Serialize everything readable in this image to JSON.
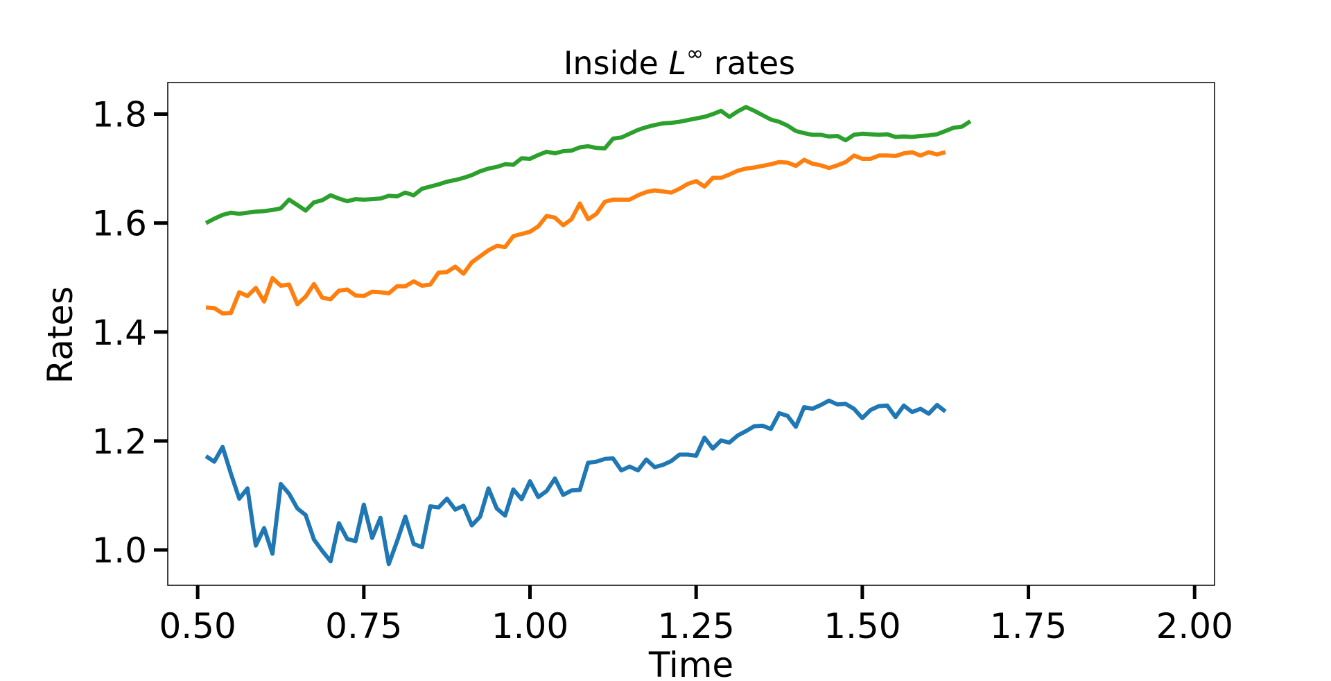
{
  "chart_data": {
    "type": "line",
    "title": "Inside L^∞ rates",
    "title_parts": {
      "prefix": "Inside ",
      "symbol": "L",
      "superscript": "∞",
      "suffix": " rates"
    },
    "xlabel": "Time",
    "ylabel": "Rates",
    "xlim": [
      0.455,
      2.03
    ],
    "ylim": [
      0.935,
      1.858
    ],
    "xticks": [
      0.5,
      0.75,
      1.0,
      1.25,
      1.5,
      1.75,
      2.0
    ],
    "xtick_labels": [
      "0.50",
      "0.75",
      "1.00",
      "1.25",
      "1.50",
      "1.75",
      "2.00"
    ],
    "yticks": [
      1.0,
      1.2,
      1.4,
      1.6,
      1.8
    ],
    "ytick_labels": [
      "1.0",
      "1.2",
      "1.4",
      "1.6",
      "1.8"
    ],
    "grid": false,
    "x_start": 0.5125,
    "x_step": 0.0125,
    "series": [
      {
        "color": "#2ca02c",
        "values": [
          1.6,
          1.608,
          1.615,
          1.619,
          1.617,
          1.619,
          1.621,
          1.622,
          1.624,
          1.627,
          1.643,
          1.633,
          1.623,
          1.638,
          1.642,
          1.651,
          1.645,
          1.64,
          1.644,
          1.643,
          1.644,
          1.645,
          1.65,
          1.649,
          1.656,
          1.651,
          1.663,
          1.667,
          1.671,
          1.676,
          1.679,
          1.683,
          1.688,
          1.695,
          1.7,
          1.703,
          1.708,
          1.707,
          1.719,
          1.718,
          1.725,
          1.731,
          1.728,
          1.732,
          1.733,
          1.739,
          1.741,
          1.738,
          1.737,
          1.755,
          1.757,
          1.764,
          1.771,
          1.776,
          1.78,
          1.783,
          1.784,
          1.786,
          1.789,
          1.792,
          1.795,
          1.8,
          1.806,
          1.795,
          1.805,
          1.813,
          1.806,
          1.798,
          1.79,
          1.786,
          1.779,
          1.769,
          1.765,
          1.762,
          1.762,
          1.759,
          1.76,
          1.752,
          1.762,
          1.764,
          1.763,
          1.762,
          1.763,
          1.758,
          1.759,
          1.758,
          1.76,
          1.761,
          1.763,
          1.769,
          1.775,
          1.777,
          1.787
        ]
      },
      {
        "color": "#ff7f0e",
        "values": [
          1.445,
          1.444,
          1.434,
          1.435,
          1.473,
          1.466,
          1.481,
          1.456,
          1.499,
          1.485,
          1.487,
          1.451,
          1.465,
          1.488,
          1.463,
          1.46,
          1.476,
          1.478,
          1.467,
          1.466,
          1.474,
          1.473,
          1.471,
          1.484,
          1.484,
          1.493,
          1.485,
          1.487,
          1.509,
          1.51,
          1.52,
          1.507,
          1.528,
          1.539,
          1.55,
          1.558,
          1.556,
          1.576,
          1.58,
          1.584,
          1.594,
          1.613,
          1.61,
          1.596,
          1.607,
          1.636,
          1.607,
          1.617,
          1.639,
          1.643,
          1.643,
          1.643,
          1.651,
          1.657,
          1.66,
          1.658,
          1.656,
          1.663,
          1.672,
          1.677,
          1.667,
          1.683,
          1.683,
          1.689,
          1.696,
          1.7,
          1.702,
          1.705,
          1.708,
          1.712,
          1.711,
          1.705,
          1.716,
          1.709,
          1.706,
          1.701,
          1.706,
          1.712,
          1.724,
          1.718,
          1.718,
          1.724,
          1.724,
          1.723,
          1.728,
          1.73,
          1.724,
          1.73,
          1.726,
          1.73
        ]
      },
      {
        "color": "#1f77b4",
        "values": [
          1.172,
          1.162,
          1.189,
          1.14,
          1.094,
          1.113,
          1.008,
          1.04,
          0.993,
          1.121,
          1.103,
          1.076,
          1.064,
          1.019,
          0.998,
          0.979,
          1.049,
          1.02,
          1.016,
          1.083,
          1.022,
          1.059,
          0.974,
          1.016,
          1.061,
          1.011,
          1.005,
          1.08,
          1.078,
          1.094,
          1.074,
          1.081,
          1.045,
          1.061,
          1.113,
          1.076,
          1.063,
          1.111,
          1.093,
          1.126,
          1.097,
          1.108,
          1.131,
          1.101,
          1.109,
          1.11,
          1.16,
          1.162,
          1.167,
          1.168,
          1.146,
          1.153,
          1.146,
          1.166,
          1.152,
          1.156,
          1.163,
          1.175,
          1.175,
          1.173,
          1.206,
          1.186,
          1.201,
          1.197,
          1.21,
          1.218,
          1.227,
          1.228,
          1.222,
          1.251,
          1.246,
          1.226,
          1.262,
          1.259,
          1.266,
          1.274,
          1.267,
          1.268,
          1.259,
          1.242,
          1.257,
          1.264,
          1.265,
          1.244,
          1.265,
          1.253,
          1.259,
          1.25,
          1.266,
          1.254
        ]
      }
    ]
  }
}
